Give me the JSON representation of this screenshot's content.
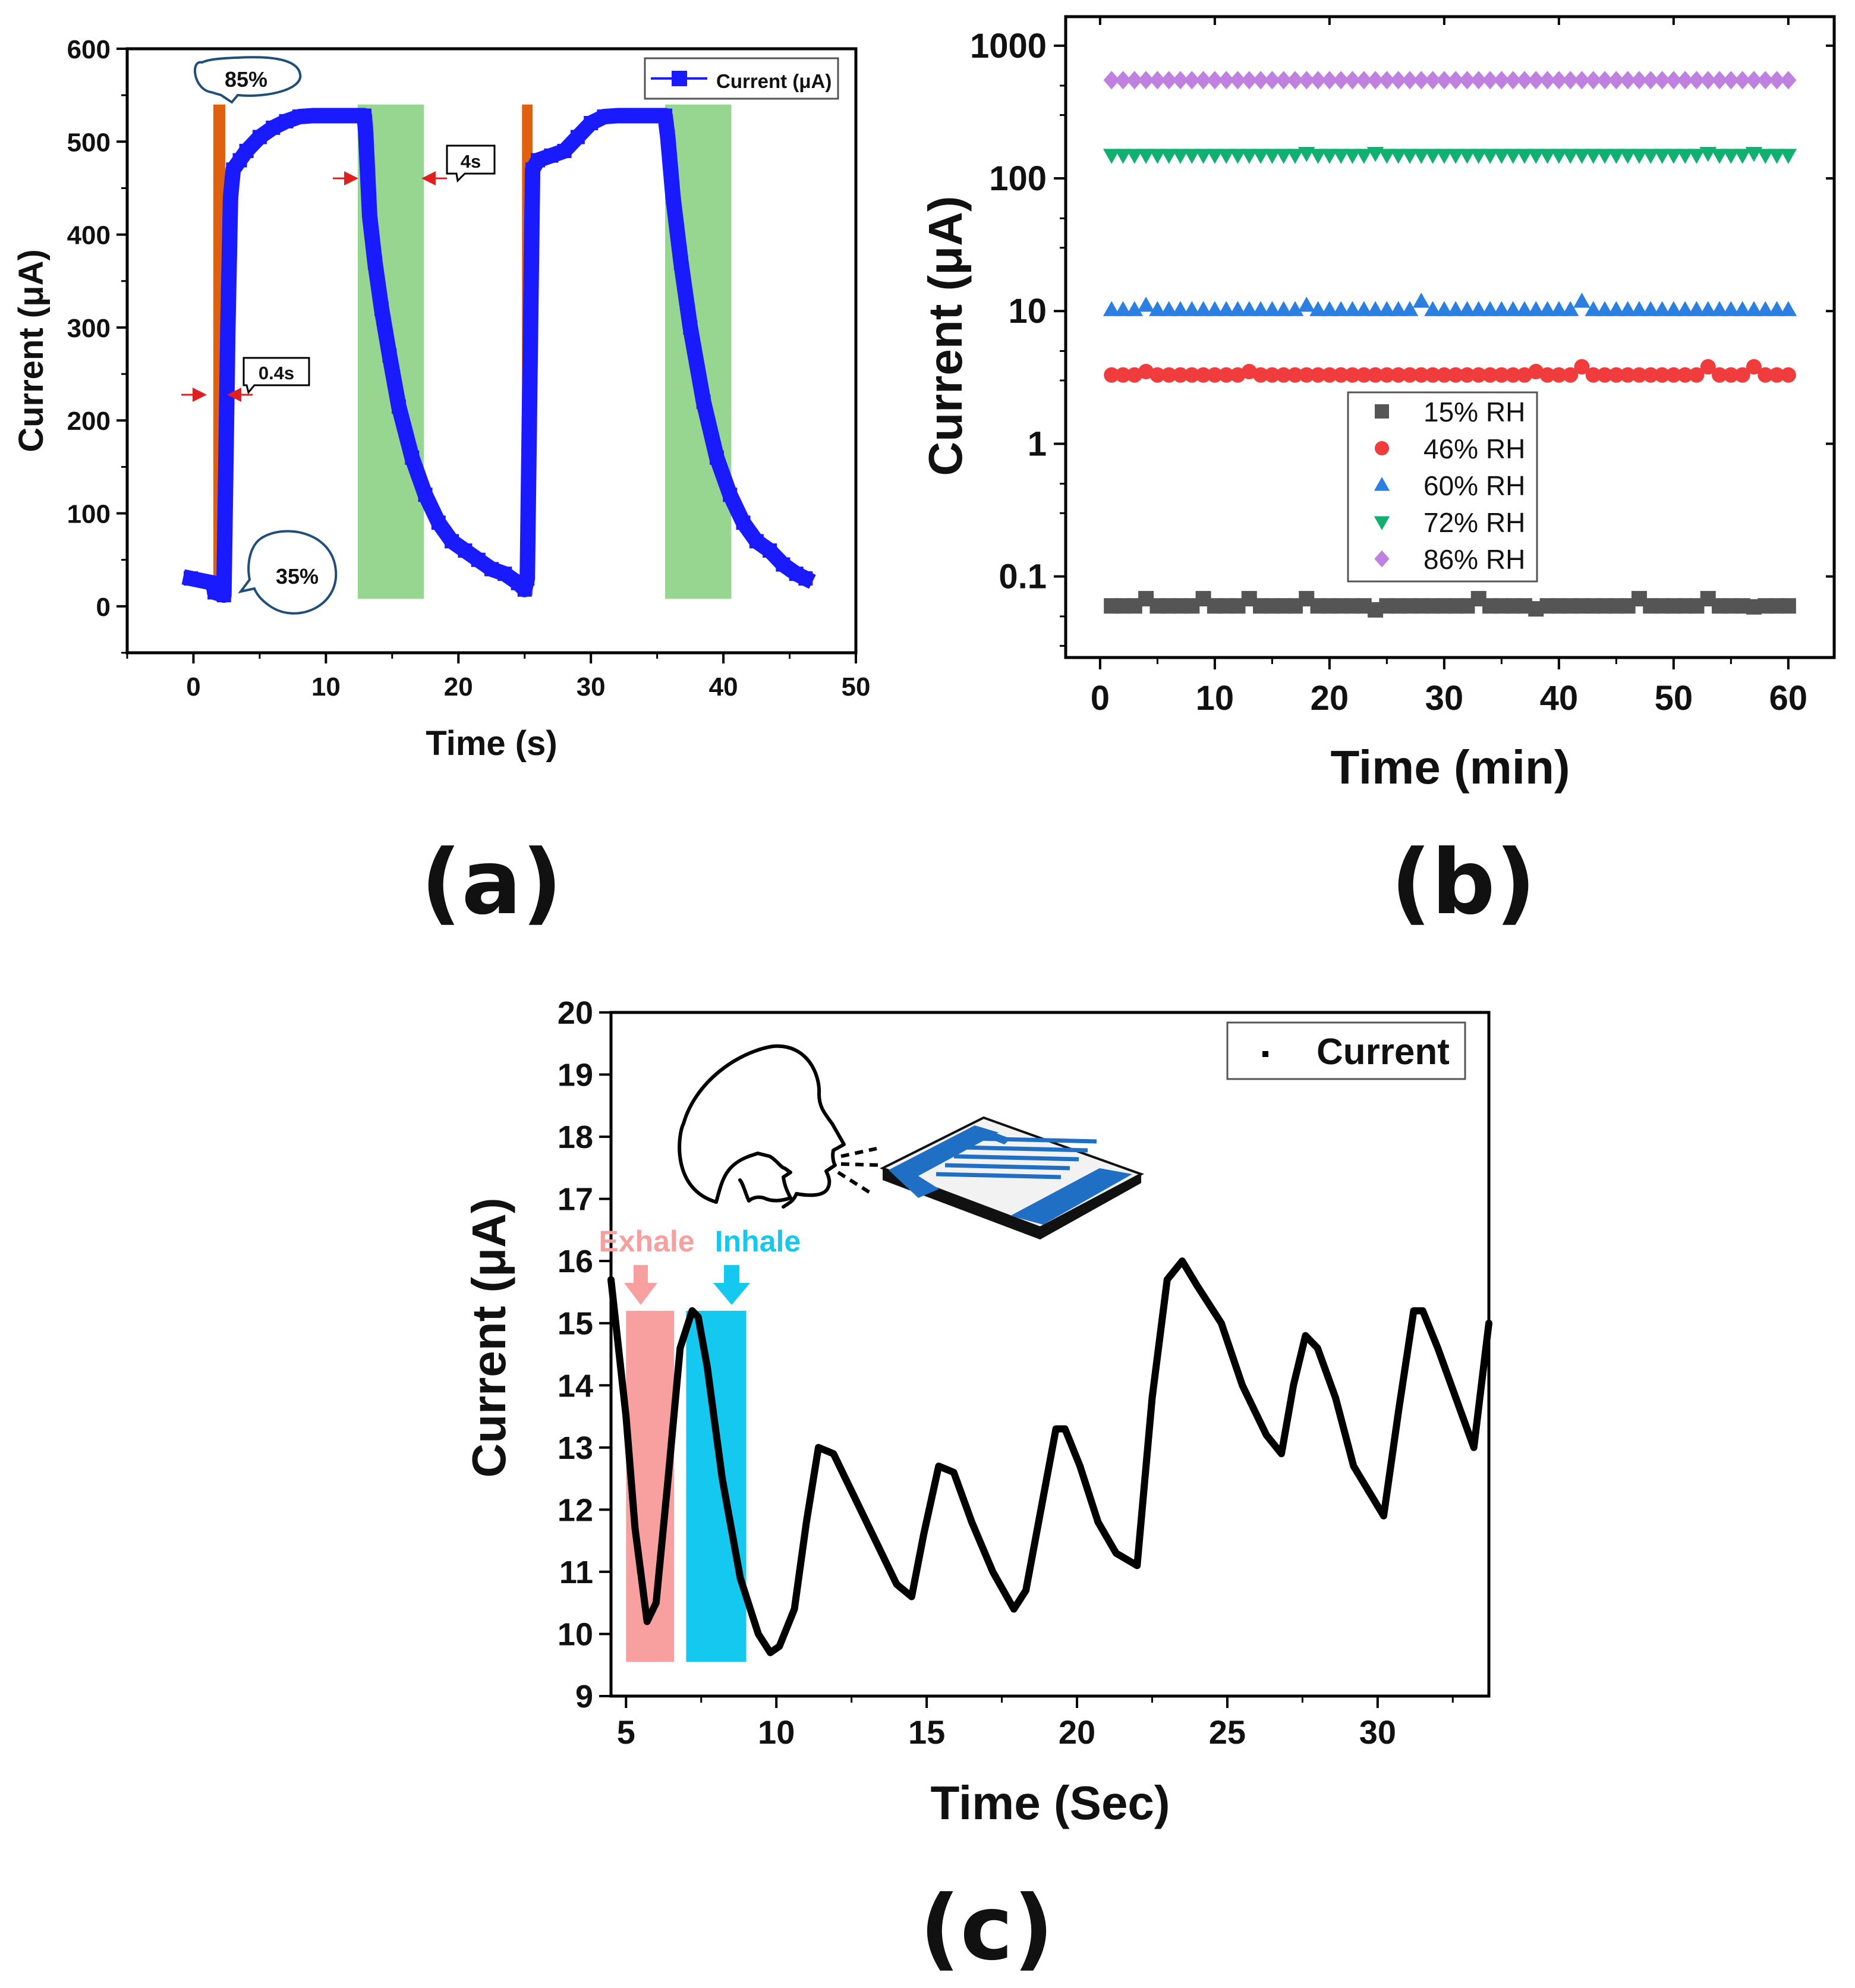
{
  "colors": {
    "blue_series": "#1a1aff",
    "exhale_fill": "#f8a0a0",
    "inhale_fill": "#14c8f0",
    "orange_band": "#e06010",
    "green_band": "#96d690",
    "rh15": "#555555",
    "rh46": "#f03c3c",
    "rh60": "#2a7fe0",
    "rh72": "#10b070",
    "rh86": "#c080e0",
    "trace_black": "#000000"
  },
  "panels": {
    "a": {
      "label": "(a)"
    },
    "b": {
      "label": "(b)"
    },
    "c": {
      "label": "(c)"
    }
  },
  "chart_data": [
    {
      "id": "a",
      "type": "line",
      "title": "",
      "xlabel": "Time (s)",
      "ylabel": "Current (μA)",
      "xlim": [
        -5,
        50
      ],
      "ylim": [
        -50,
        600
      ],
      "xticks": [
        0,
        10,
        20,
        30,
        40,
        50
      ],
      "yticks": [
        0,
        100,
        200,
        300,
        400,
        500,
        600
      ],
      "legend": {
        "position": "top-right",
        "entries": [
          "Current (μA)"
        ]
      },
      "series": [
        {
          "name": "Current (μA)",
          "marker": "square",
          "x": [
            -0.2,
            1.5,
            1.6,
            2.3,
            2.6,
            2.8,
            3.0,
            3.5,
            4,
            5,
            6,
            7,
            8,
            9,
            10,
            11,
            12,
            12.9,
            13.0,
            13.3,
            13.7,
            14.2,
            14.8,
            15.5,
            16.5,
            17.5,
            18.5,
            19.5,
            20.5,
            21.5,
            22.5,
            23.5,
            24.5,
            25.0,
            25.2,
            25.6,
            26,
            27,
            28,
            29,
            30,
            31,
            32,
            33,
            34,
            35,
            35.6,
            35.8,
            36.2,
            36.8,
            37.5,
            38.5,
            39.5,
            40.5,
            41.5,
            42.5,
            43.5,
            44.5,
            45.5,
            46.2
          ],
          "values": [
            30,
            25,
            15,
            12,
            300,
            440,
            470,
            480,
            490,
            505,
            515,
            522,
            527,
            528,
            528,
            528,
            528,
            528,
            510,
            420,
            370,
            320,
            270,
            215,
            160,
            120,
            90,
            70,
            60,
            50,
            40,
            35,
            25,
            18,
            30,
            470,
            480,
            485,
            490,
            505,
            520,
            527,
            528,
            528,
            528,
            528,
            528,
            505,
            440,
            370,
            300,
            220,
            160,
            120,
            90,
            70,
            60,
            45,
            35,
            30
          ]
        }
      ],
      "bands": [
        {
          "kind": "orange",
          "x0": 1.5,
          "x1": 2.4,
          "y0": 12,
          "y1": 540
        },
        {
          "kind": "green",
          "x0": 12.4,
          "x1": 17.4,
          "y0": 8,
          "y1": 540
        },
        {
          "kind": "orange",
          "x0": 24.8,
          "x1": 25.6,
          "y0": 12,
          "y1": 540
        },
        {
          "kind": "green",
          "x0": 35.6,
          "x1": 40.6,
          "y0": 8,
          "y1": 540
        }
      ],
      "annotations": {
        "high_rh": "85%",
        "low_rh": "35%",
        "response_time": "0.4s",
        "recovery_time": "4s"
      }
    },
    {
      "id": "b",
      "type": "scatter",
      "title": "",
      "xlabel": "Time (min)",
      "ylabel": "Current (μA)",
      "xlim": [
        -3,
        64
      ],
      "ylim": [
        0.0245,
        1655
      ],
      "yscale": "log",
      "xticks": [
        0,
        10,
        20,
        30,
        40,
        50,
        60
      ],
      "yticks": [
        0.1,
        1,
        10,
        100,
        1000
      ],
      "ytick_labels": [
        "0.1",
        "1",
        "10",
        "100",
        "1000"
      ],
      "legend": {
        "position": "center-right",
        "entries": [
          "15% RH",
          "46% RH",
          "60% RH",
          "72% RH",
          "86% RH"
        ]
      },
      "series": [
        {
          "name": "15% RH",
          "marker": "square",
          "x_start": 1,
          "x_end": 60,
          "x_step": 1,
          "baseline": 0.06,
          "spikes": [
            [
              4,
              0.068
            ],
            [
              9,
              0.068
            ],
            [
              13,
              0.068
            ],
            [
              18,
              0.068
            ],
            [
              24,
              0.056
            ],
            [
              33,
              0.068
            ],
            [
              38,
              0.057
            ],
            [
              47,
              0.068
            ],
            [
              53,
              0.068
            ],
            [
              57,
              0.059
            ]
          ]
        },
        {
          "name": "46% RH",
          "marker": "circle",
          "x_start": 1,
          "x_end": 60,
          "x_step": 1,
          "baseline": 3.3,
          "spikes": [
            [
              4,
              3.5
            ],
            [
              13,
              3.5
            ],
            [
              38,
              3.5
            ],
            [
              42,
              3.8
            ],
            [
              53,
              3.8
            ],
            [
              57,
              3.8
            ]
          ]
        },
        {
          "name": "60% RH",
          "marker": "triangle-up",
          "x_start": 1,
          "x_end": 60,
          "x_step": 1,
          "baseline": 10.2,
          "spikes": [
            [
              4,
              11.0
            ],
            [
              18,
              11.0
            ],
            [
              28,
              11.8
            ],
            [
              42,
              11.8
            ]
          ]
        },
        {
          "name": "72% RH",
          "marker": "triangle-down",
          "x_start": 1,
          "x_end": 60,
          "x_step": 1,
          "baseline": 150,
          "spikes": [
            [
              18,
              155
            ],
            [
              24,
              155
            ],
            [
              53,
              155
            ],
            [
              57,
              155
            ]
          ]
        },
        {
          "name": "86% RH",
          "marker": "diamond",
          "x_start": 1,
          "x_end": 60,
          "x_step": 1,
          "baseline": 550,
          "spikes": []
        }
      ]
    },
    {
      "id": "c",
      "type": "line",
      "title": "",
      "xlabel": "Time (Sec)",
      "ylabel": "Current (μA)",
      "xlim": [
        4.5,
        33.7
      ],
      "ylim": [
        9,
        20
      ],
      "xticks": [
        5,
        10,
        15,
        20,
        25,
        30
      ],
      "yticks": [
        9,
        10,
        11,
        12,
        13,
        14,
        15,
        16,
        17,
        18,
        19,
        20
      ],
      "legend": {
        "position": "top-right",
        "entries": [
          "Current"
        ]
      },
      "series": [
        {
          "name": "Current",
          "x": [
            4.5,
            5.0,
            5.3,
            5.7,
            6.0,
            6.4,
            6.8,
            7.2,
            7.4,
            7.7,
            8.2,
            8.8,
            9.4,
            9.8,
            10.1,
            10.6,
            11.0,
            11.4,
            11.9,
            12.5,
            13.3,
            14.0,
            14.5,
            14.9,
            15.4,
            15.9,
            16.5,
            17.2,
            17.9,
            18.3,
            18.8,
            19.3,
            19.6,
            20.1,
            20.7,
            21.3,
            22.0,
            22.5,
            23.0,
            23.5,
            24.0,
            24.8,
            25.5,
            26.3,
            26.8,
            27.2,
            27.6,
            28.0,
            28.6,
            29.2,
            29.7,
            30.2,
            30.7,
            31.2,
            31.5,
            32.0,
            32.6,
            33.2,
            33.7
          ],
          "values": [
            15.7,
            13.5,
            11.7,
            10.2,
            10.5,
            12.5,
            14.6,
            15.2,
            15.1,
            14.3,
            12.5,
            10.9,
            10.0,
            9.7,
            9.8,
            10.4,
            11.8,
            13.0,
            12.9,
            12.3,
            11.5,
            10.8,
            10.6,
            11.6,
            12.7,
            12.6,
            11.8,
            11.0,
            10.4,
            10.7,
            12.0,
            13.3,
            13.3,
            12.7,
            11.8,
            11.3,
            11.1,
            13.8,
            15.7,
            16.0,
            15.6,
            15.0,
            14.0,
            13.2,
            12.9,
            14.0,
            14.8,
            14.6,
            13.8,
            12.7,
            12.3,
            11.9,
            13.6,
            15.2,
            15.2,
            14.6,
            13.8,
            13.0,
            15.0
          ]
        }
      ],
      "bands": [
        {
          "kind": "exhale",
          "x0": 5.0,
          "x1": 6.6,
          "y0": 9.55,
          "y1": 15.2
        },
        {
          "kind": "inhale",
          "x0": 7.0,
          "x1": 9.0,
          "y0": 9.55,
          "y1": 15.2
        }
      ],
      "annotations": {
        "exhale": "Exhale",
        "inhale": "Inhale"
      }
    }
  ]
}
